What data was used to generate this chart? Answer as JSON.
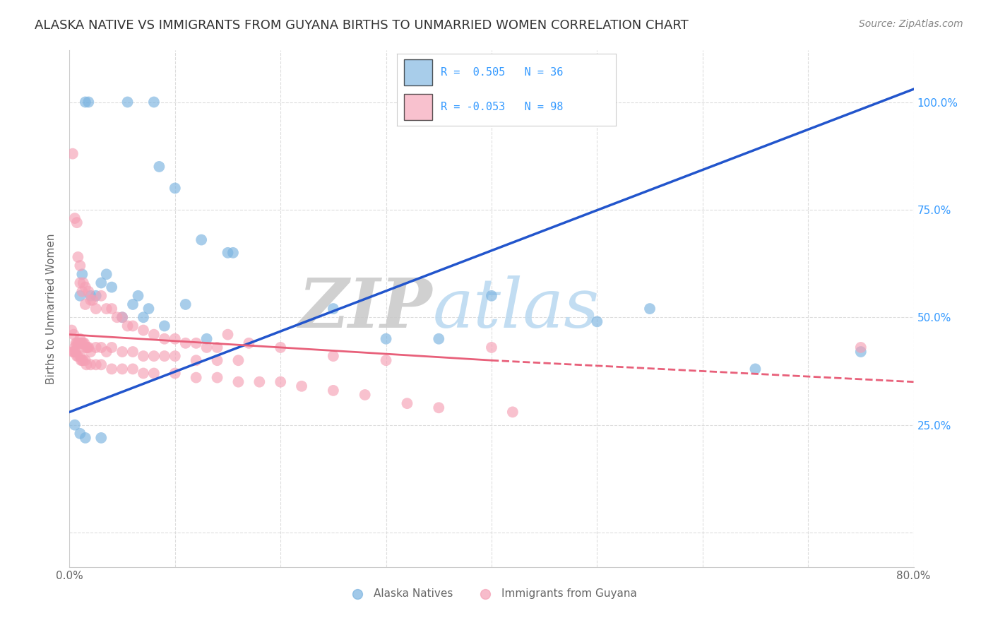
{
  "title": "ALASKA NATIVE VS IMMIGRANTS FROM GUYANA BIRTHS TO UNMARRIED WOMEN CORRELATION CHART",
  "source": "Source: ZipAtlas.com",
  "ylabel": "Births to Unmarried Women",
  "xlim": [
    0,
    80
  ],
  "ylim": [
    -8,
    112
  ],
  "background_color": "#ffffff",
  "grid_color": "#dddddd",
  "watermark_zip": "ZIP",
  "watermark_atlas": "atlas",
  "blue_scatter_x": [
    1.5,
    1.8,
    5.5,
    8.0,
    8.5,
    10.0,
    12.5,
    15.0,
    15.5,
    1.0,
    1.2,
    2.0,
    2.5,
    3.0,
    3.5,
    4.0,
    5.0,
    6.0,
    6.5,
    7.0,
    7.5,
    9.0,
    11.0,
    13.0,
    25.0,
    30.0,
    35.0,
    40.0,
    50.0,
    55.0,
    65.0,
    75.0,
    0.5,
    1.0,
    1.5,
    3.0
  ],
  "blue_scatter_y": [
    100.0,
    100.0,
    100.0,
    100.0,
    85.0,
    80.0,
    68.0,
    65.0,
    65.0,
    55.0,
    60.0,
    55.0,
    55.0,
    58.0,
    60.0,
    57.0,
    50.0,
    53.0,
    55.0,
    50.0,
    52.0,
    48.0,
    53.0,
    45.0,
    52.0,
    45.0,
    45.0,
    55.0,
    49.0,
    52.0,
    38.0,
    42.0,
    25.0,
    23.0,
    22.0,
    22.0
  ],
  "pink_scatter_x": [
    0.3,
    0.5,
    0.7,
    0.8,
    1.0,
    1.0,
    1.2,
    1.3,
    1.5,
    1.5,
    1.8,
    2.0,
    2.2,
    2.5,
    3.0,
    3.5,
    4.0,
    4.5,
    5.0,
    5.5,
    6.0,
    7.0,
    8.0,
    9.0,
    10.0,
    11.0,
    12.0,
    13.0,
    14.0,
    15.0,
    17.0,
    20.0,
    25.0,
    30.0,
    40.0,
    75.0,
    0.2,
    0.4,
    0.5,
    0.6,
    0.7,
    0.8,
    0.9,
    1.0,
    1.1,
    1.2,
    1.3,
    1.4,
    1.5,
    1.6,
    1.7,
    1.8,
    2.0,
    2.5,
    3.0,
    3.5,
    4.0,
    5.0,
    6.0,
    7.0,
    8.0,
    9.0,
    10.0,
    12.0,
    14.0,
    16.0,
    0.3,
    0.4,
    0.5,
    0.6,
    0.7,
    0.8,
    1.0,
    1.1,
    1.2,
    1.3,
    1.5,
    1.6,
    2.0,
    2.5,
    3.0,
    4.0,
    5.0,
    6.0,
    7.0,
    8.0,
    10.0,
    12.0,
    14.0,
    16.0,
    18.0,
    20.0,
    22.0,
    25.0,
    28.0,
    32.0,
    35.0,
    42.0
  ],
  "pink_scatter_y": [
    88.0,
    73.0,
    72.0,
    64.0,
    62.0,
    58.0,
    56.0,
    58.0,
    57.0,
    53.0,
    56.0,
    54.0,
    54.0,
    52.0,
    55.0,
    52.0,
    52.0,
    50.0,
    50.0,
    48.0,
    48.0,
    47.0,
    46.0,
    45.0,
    45.0,
    44.0,
    44.0,
    43.0,
    43.0,
    46.0,
    44.0,
    43.0,
    41.0,
    40.0,
    43.0,
    43.0,
    47.0,
    46.0,
    43.0,
    44.0,
    44.0,
    44.0,
    44.0,
    45.0,
    44.0,
    44.0,
    44.0,
    44.0,
    43.0,
    43.0,
    43.0,
    43.0,
    42.0,
    43.0,
    43.0,
    42.0,
    43.0,
    42.0,
    42.0,
    41.0,
    41.0,
    41.0,
    41.0,
    40.0,
    40.0,
    40.0,
    42.0,
    42.0,
    42.0,
    42.0,
    41.0,
    41.0,
    41.0,
    40.0,
    40.0,
    40.0,
    40.0,
    39.0,
    39.0,
    39.0,
    39.0,
    38.0,
    38.0,
    38.0,
    37.0,
    37.0,
    37.0,
    36.0,
    36.0,
    35.0,
    35.0,
    35.0,
    34.0,
    33.0,
    32.0,
    30.0,
    29.0,
    28.0
  ],
  "blue_line_x0": 0,
  "blue_line_x1": 80,
  "blue_line_y0": 28,
  "blue_line_y1": 103,
  "pink_solid_x0": 0,
  "pink_solid_x1": 40,
  "pink_solid_y0": 46,
  "pink_solid_y1": 40,
  "pink_dash_x0": 40,
  "pink_dash_x1": 80,
  "pink_dash_y0": 40,
  "pink_dash_y1": 35,
  "title_color": "#333333",
  "source_color": "#888888",
  "blue_color": "#7ab3e0",
  "pink_color": "#f5a0b5",
  "blue_line_color": "#2255cc",
  "pink_line_color": "#e8607a",
  "right_yaxis_color": "#3399ff",
  "title_fontsize": 13,
  "source_fontsize": 10,
  "legend_fontsize": 11,
  "axis_label_fontsize": 11,
  "legend_R_blue": "R =  0.505",
  "legend_N_blue": "N = 36",
  "legend_R_pink": "R = -0.053",
  "legend_N_pink": "N = 98",
  "legend_label_blue": "Alaska Natives",
  "legend_label_pink": "Immigrants from Guyana"
}
